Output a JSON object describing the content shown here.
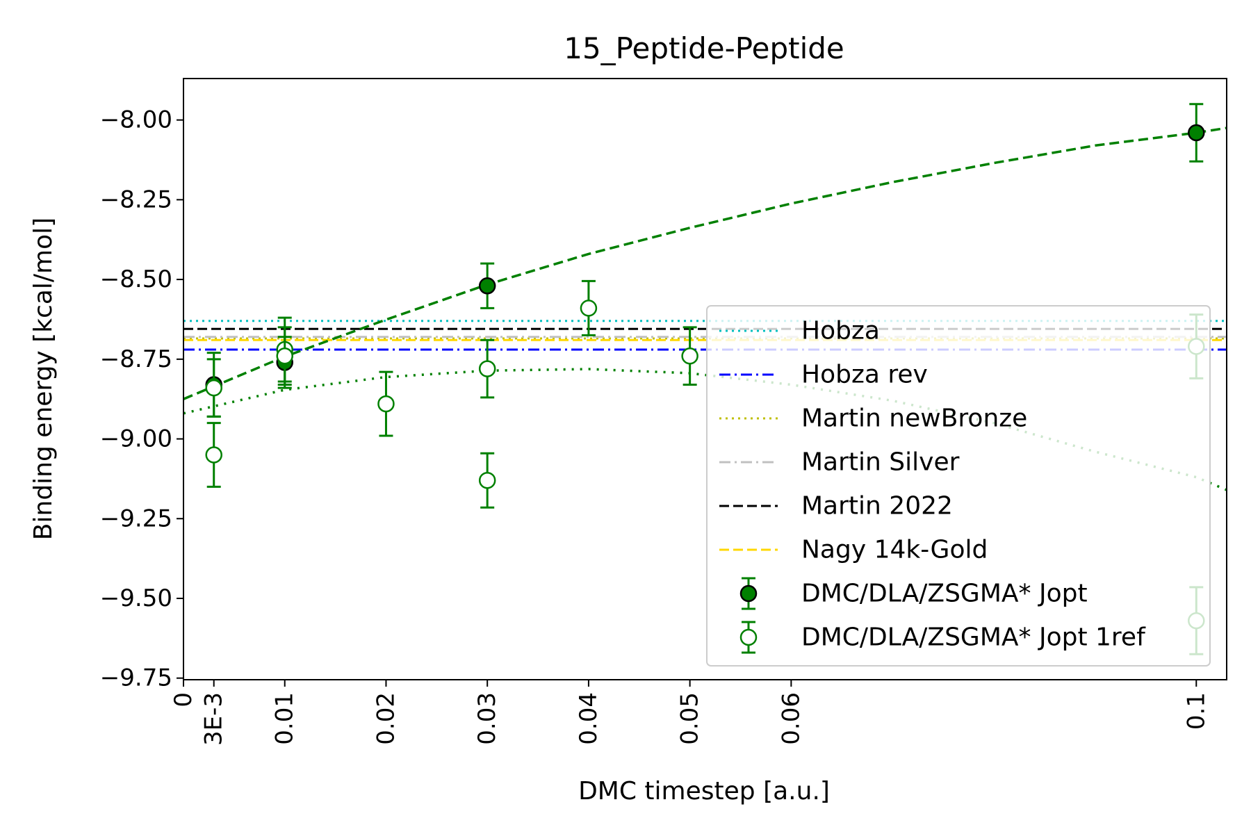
{
  "chart_data": {
    "type": "scatter",
    "title": "15_Peptide-Peptide",
    "xlabel": "DMC timestep [a.u.]",
    "ylabel": "Binding energy [kcal/mol]",
    "xlim": [
      0,
      0.103
    ],
    "ylim": [
      -9.755,
      -7.87
    ],
    "x_ticks": [
      0,
      0.003,
      0.01,
      0.02,
      0.03,
      0.04,
      0.05,
      0.06,
      0.1
    ],
    "x_tick_labels": [
      "0",
      "3E-3",
      "0.01",
      "0.02",
      "0.03",
      "0.04",
      "0.05",
      "0.06",
      "0.1"
    ],
    "y_ticks": [
      -8.0,
      -8.25,
      -8.5,
      -8.75,
      -9.0,
      -9.25,
      -9.5,
      -9.75
    ],
    "y_tick_labels": [
      "−8.00",
      "−8.25",
      "−8.50",
      "−8.75",
      "−9.00",
      "−9.25",
      "−9.50",
      "−9.75"
    ],
    "grid": false,
    "legend_position": "center-right",
    "reference_lines": [
      {
        "name": "Hobza",
        "y": -8.63,
        "color": "#00bfbf",
        "style": "dotted"
      },
      {
        "name": "Hobza rev",
        "y": -8.72,
        "color": "#0000ff",
        "style": "dashdot"
      },
      {
        "name": "Martin newBronze",
        "y": -8.685,
        "color": "#bfbf00",
        "style": "dotted"
      },
      {
        "name": "Martin Silver",
        "y": -8.68,
        "color": "#c0c0c0",
        "style": "dashdot"
      },
      {
        "name": "Martin 2022",
        "y": -8.655,
        "color": "#000000",
        "style": "dashed"
      },
      {
        "name": "Nagy 14k-Gold",
        "y": -8.69,
        "color": "#ffd700",
        "style": "dashed"
      }
    ],
    "series": [
      {
        "name": "DMC/DLA/ZSGMA* Jopt",
        "marker": "filled-circle",
        "color": "#008000",
        "points": [
          {
            "x": 0.003,
            "y": -8.83,
            "err": 0.1
          },
          {
            "x": 0.01,
            "y": -8.76,
            "err": 0.08
          },
          {
            "x": 0.03,
            "y": -8.52,
            "err": 0.07
          },
          {
            "x": 0.1,
            "y": -8.04,
            "err": 0.09
          }
        ]
      },
      {
        "name": "DMC/DLA/ZSGMA* Jopt 1ref",
        "marker": "open-circle",
        "color": "#008000",
        "points": [
          {
            "x": 0.003,
            "y": -8.84,
            "err": 0.09
          },
          {
            "x": 0.003,
            "y": -9.05,
            "err": 0.1
          },
          {
            "x": 0.01,
            "y": -8.72,
            "err": 0.1
          },
          {
            "x": 0.01,
            "y": -8.74,
            "err": 0.09
          },
          {
            "x": 0.02,
            "y": -8.89,
            "err": 0.1
          },
          {
            "x": 0.03,
            "y": -8.78,
            "err": 0.09
          },
          {
            "x": 0.03,
            "y": -9.13,
            "err": 0.085
          },
          {
            "x": 0.04,
            "y": -8.59,
            "err": 0.085
          },
          {
            "x": 0.05,
            "y": -8.74,
            "err": 0.09
          },
          {
            "x": 0.1,
            "y": -8.71,
            "err": 0.1
          },
          {
            "x": 0.1,
            "y": -9.57,
            "err": 0.105
          }
        ]
      }
    ],
    "fit_curves": [
      {
        "of": "DMC/DLA/ZSGMA* Jopt",
        "style": "dashed",
        "color": "#008000",
        "x": [
          0,
          0.01,
          0.02,
          0.03,
          0.04,
          0.05,
          0.06,
          0.07,
          0.08,
          0.09,
          0.1,
          0.103
        ],
        "y": [
          -8.875,
          -8.742,
          -8.626,
          -8.516,
          -8.42,
          -8.338,
          -8.262,
          -8.195,
          -8.135,
          -8.08,
          -8.04,
          -8.025
        ]
      },
      {
        "of": "DMC/DLA/ZSGMA* Jopt 1ref",
        "style": "dotted",
        "color": "#008000",
        "x": [
          0,
          0.01,
          0.02,
          0.03,
          0.04,
          0.05,
          0.06,
          0.07,
          0.08,
          0.09,
          0.1,
          0.103
        ],
        "y": [
          -8.92,
          -8.846,
          -8.806,
          -8.786,
          -8.781,
          -8.794,
          -8.83,
          -8.88,
          -8.95,
          -9.04,
          -9.12,
          -9.16
        ]
      }
    ]
  }
}
